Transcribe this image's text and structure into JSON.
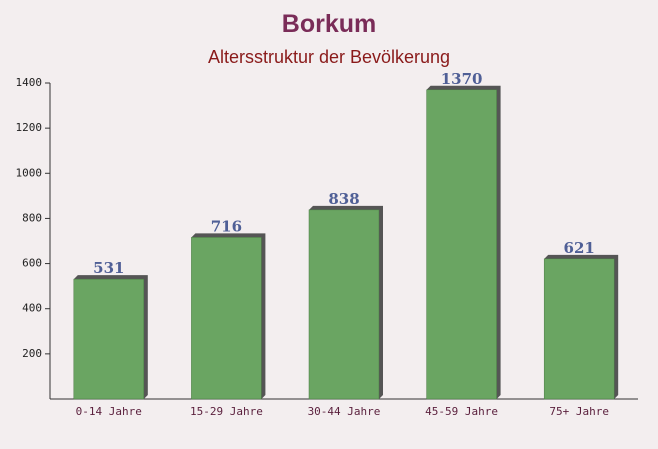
{
  "chart_data": {
    "type": "bar",
    "title": "Borkum",
    "subtitle": "Altersstruktur der Bevölkerung",
    "categories": [
      "0-14 Jahre",
      "15-29 Jahre",
      "30-44 Jahre",
      "45-59 Jahre",
      "75+ Jahre"
    ],
    "values": [
      531,
      716,
      838,
      1370,
      621
    ],
    "color": "#6aa562",
    "ylim": [
      0,
      1400
    ],
    "yticks": [
      200,
      400,
      600,
      800,
      1000,
      1200,
      1400
    ]
  }
}
